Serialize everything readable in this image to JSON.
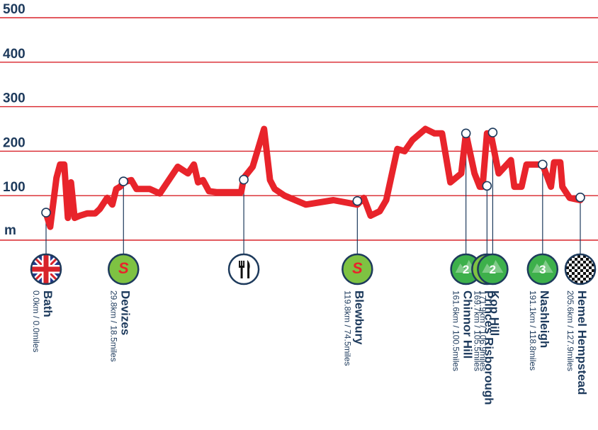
{
  "chart_data": {
    "type": "area",
    "ylim": [
      0,
      500
    ],
    "yticks": [
      500,
      400,
      300,
      200,
      100
    ],
    "yunit": "m",
    "grid": true,
    "colors": {
      "line": "#e8242b",
      "grid": "#d8232a",
      "text": "#1d3a5c",
      "sprint": "#7ec242",
      "climb": "#3db04b"
    },
    "x": [
      0.0,
      1.6,
      4.0,
      5.4,
      7.0,
      8.4,
      9.6,
      11.0,
      13.0,
      15.8,
      18.9,
      20.7,
      23.5,
      25.5,
      27.0,
      28.5,
      29.8,
      32.8,
      34.8,
      39.9,
      43.8,
      50.7,
      54.6,
      56.9,
      58.5,
      60.4,
      62.7,
      65.6,
      75.1,
      76.1,
      79.5,
      83.9,
      86.2,
      88.0,
      91.8,
      100.0,
      110.6,
      119.8,
      122.3,
      124.9,
      128.4,
      130.9,
      135.2,
      138.0,
      141.0,
      146.0,
      149.5,
      152.4,
      155.6,
      159.8,
      161.6,
      164.9,
      166.9,
      168.0,
      169.7,
      171.1,
      174.2,
      178.9,
      180.2,
      183.0,
      184.9,
      188.2,
      191.1,
      194.3,
      195.5,
      197.9,
      198.7,
      201.5,
      205.6
    ],
    "y": [
      60,
      30,
      140,
      170,
      170,
      50,
      130,
      50,
      55,
      60,
      60,
      70,
      95,
      80,
      115,
      120,
      130,
      135,
      115,
      115,
      105,
      165,
      150,
      170,
      130,
      135,
      110,
      108,
      108,
      140,
      165,
      250,
      135,
      115,
      100,
      80,
      90,
      80,
      95,
      55,
      65,
      90,
      205,
      200,
      225,
      250,
      240,
      240,
      130,
      150,
      240,
      150,
      120,
      120,
      240,
      240,
      150,
      180,
      120,
      120,
      170,
      170,
      170,
      120,
      175,
      175,
      120,
      95,
      90
    ],
    "points": [
      {
        "name": "Bath",
        "dist": "0.0km / 0.0miles",
        "km": 0.0,
        "elev": 62,
        "icon": "uk-flag-icon"
      },
      {
        "name": "Devizes",
        "dist": "29.8km / 18.5miles",
        "km": 29.8,
        "elev": 132,
        "icon": "sprint-icon",
        "badge": "S"
      },
      {
        "name": "",
        "dist": "",
        "km": 76.1,
        "elev": 136,
        "icon": "feed-zone-icon"
      },
      {
        "name": "Blewbury",
        "dist": "119.8km / 74.5miles",
        "km": 119.8,
        "elev": 88,
        "icon": "sprint-icon",
        "badge": "S"
      },
      {
        "name": "Chinnor Hill",
        "dist": "161.6km / 100.5miles",
        "km": 161.6,
        "elev": 240,
        "icon": "climb-2-icon",
        "badge": "2"
      },
      {
        "name": "Princes Risborough",
        "dist": "169.7km / 105.5miles",
        "km": 169.7,
        "elev": 122,
        "icon": "sprint-icon",
        "badge": "S"
      },
      {
        "name": "Kop Hill",
        "dist": "171.9km / 106.9miles",
        "km": 171.9,
        "elev": 242,
        "icon": "climb-2-icon",
        "badge": "2"
      },
      {
        "name": "Nashleigh",
        "dist": "191.1km / 118.8miles",
        "km": 191.1,
        "elev": 170,
        "icon": "climb-3-icon",
        "badge": "3"
      },
      {
        "name": "Hemel Hempstead",
        "dist": "205.6km / 127.9miles",
        "km": 205.6,
        "elev": 96,
        "icon": "finish-flag-icon"
      }
    ]
  }
}
